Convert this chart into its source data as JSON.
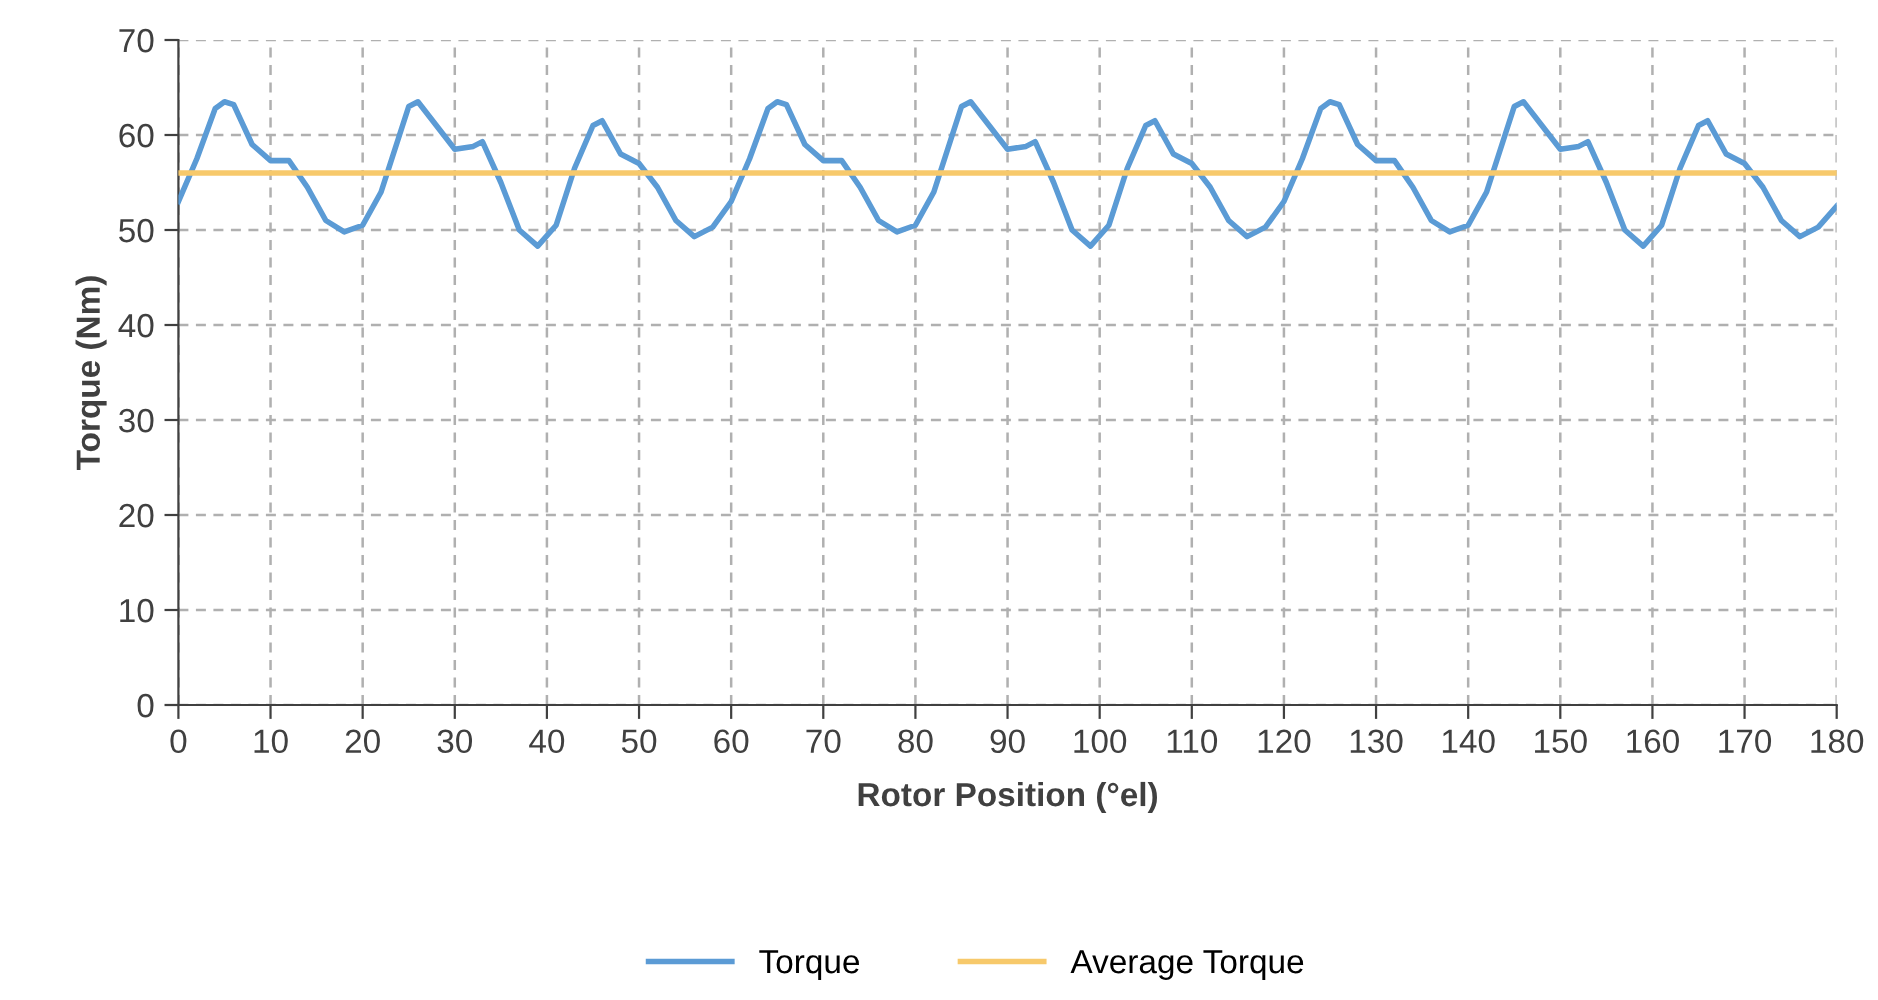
{
  "chart_data": {
    "type": "line",
    "xlabel": "Rotor Position (°el)",
    "ylabel": "Torque (Nm)",
    "xlim": [
      0,
      180
    ],
    "xticks": [
      0,
      10,
      20,
      30,
      40,
      50,
      60,
      70,
      80,
      90,
      100,
      110,
      120,
      130,
      140,
      150,
      160,
      170,
      180
    ],
    "ylim": [
      0,
      70
    ],
    "yticks": [
      0,
      10,
      20,
      30,
      40,
      50,
      60,
      70
    ],
    "grid": true,
    "legend": "bottom",
    "marker": "none",
    "line_style": "solid",
    "series": [
      {
        "name": "Torque",
        "color": "#5b9bd5",
        "x": [
          0,
          2,
          4,
          5,
          6,
          8,
          10,
          12,
          14,
          16,
          18,
          20,
          22,
          24,
          25,
          26,
          28,
          30,
          32,
          33,
          35,
          37,
          39,
          41,
          43,
          45,
          46,
          48,
          50,
          52,
          54,
          56,
          58,
          60,
          62,
          64,
          65,
          66,
          68,
          70,
          72,
          74,
          76,
          78,
          80,
          82,
          84,
          85,
          86,
          88,
          90,
          92,
          93,
          95,
          97,
          99,
          101,
          103,
          105,
          106,
          108,
          110,
          112,
          114,
          116,
          118,
          120,
          122,
          124,
          125,
          126,
          128,
          130,
          132,
          134,
          136,
          138,
          140,
          142,
          144,
          145,
          146,
          148,
          150,
          152,
          153,
          155,
          157,
          159,
          161,
          163,
          165,
          166,
          168,
          170,
          172,
          174,
          176,
          178,
          180
        ],
        "values": [
          53,
          57.5,
          62.8,
          63.5,
          63.2,
          59,
          57.3,
          57.3,
          54.5,
          51,
          49.8,
          50.5,
          54,
          60,
          63,
          63.5,
          61,
          58.5,
          58.8,
          59.3,
          55,
          50,
          48.3,
          50.5,
          56.5,
          61,
          61.5,
          58,
          57,
          54.5,
          51,
          49.3,
          50.3,
          53,
          57.5,
          62.8,
          63.5,
          63.2,
          59,
          57.3,
          57.3,
          54.5,
          51,
          49.8,
          50.5,
          54,
          60,
          63,
          63.5,
          61,
          58.5,
          58.8,
          59.3,
          55,
          50,
          48.3,
          50.5,
          56.5,
          61,
          61.5,
          58,
          57,
          54.5,
          51,
          49.3,
          50.3,
          53,
          57.5,
          62.8,
          63.5,
          63.2,
          59,
          57.3,
          57.3,
          54.5,
          51,
          49.8,
          50.5,
          54,
          60,
          63,
          63.5,
          61,
          58.5,
          58.8,
          59.3,
          55,
          50,
          48.3,
          50.5,
          56.5,
          61,
          61.5,
          58,
          57,
          54.5,
          51,
          49.3,
          50.3,
          52.5
        ]
      },
      {
        "name": "Average Torque",
        "color": "#f7c96b",
        "x": [
          0,
          180
        ],
        "values": [
          56,
          56
        ]
      }
    ]
  }
}
